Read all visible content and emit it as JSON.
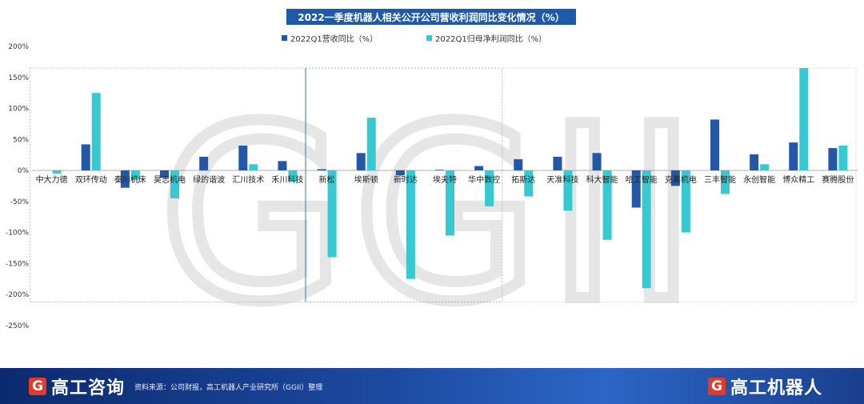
{
  "chart_data": {
    "type": "bar",
    "title": "2022一季度机器人相关公开公司营收利润同比变化情况（%）",
    "ylim": [
      -250,
      200
    ],
    "yticks": [
      "200%",
      "150%",
      "100%",
      "50%",
      "0%",
      "-50%",
      "-100%",
      "-150%",
      "-200%",
      "-250%"
    ],
    "ytick_values": [
      200,
      150,
      100,
      50,
      0,
      -50,
      -100,
      -150,
      -200,
      -250
    ],
    "categories": [
      "中大力德",
      "双环传动",
      "秦川机床",
      "昊志机电",
      "绿的谐波",
      "汇川技术",
      "禾川科技",
      "新松",
      "埃斯顿",
      "新时达",
      "埃夫特",
      "华中数控",
      "拓斯达",
      "天准科技",
      "科大智能",
      "哈工智能",
      "克莱机电",
      "三丰智能",
      "永创智能",
      "博众精工",
      "赛腾股份"
    ],
    "series": [
      {
        "name": "2022Q1营收同比（%）",
        "color": "#2458a6",
        "values": [
          0,
          42,
          -28,
          -12,
          22,
          40,
          15,
          2,
          28,
          -8,
          1,
          7,
          18,
          22,
          28,
          -60,
          -25,
          82,
          26,
          45,
          36
        ]
      },
      {
        "name": "2022Q1归母净利润同比（%）",
        "color": "#37c9d2",
        "values": [
          -5,
          125,
          -15,
          -45,
          0,
          10,
          -18,
          -140,
          85,
          -175,
          -105,
          -58,
          -42,
          -65,
          -112,
          -190,
          -100,
          -38,
          10,
          165,
          40
        ]
      }
    ],
    "legend_position": "top-center",
    "grid": false,
    "background_watermark": "GGII"
  },
  "footer": {
    "logo_left_mark": "G",
    "logo_left_text": "高工咨询",
    "source": "资料来源：公司财报，高工机器人产业研究所（GGII）整理",
    "logo_right_mark": "G",
    "logo_right_text": "高工机器人"
  }
}
